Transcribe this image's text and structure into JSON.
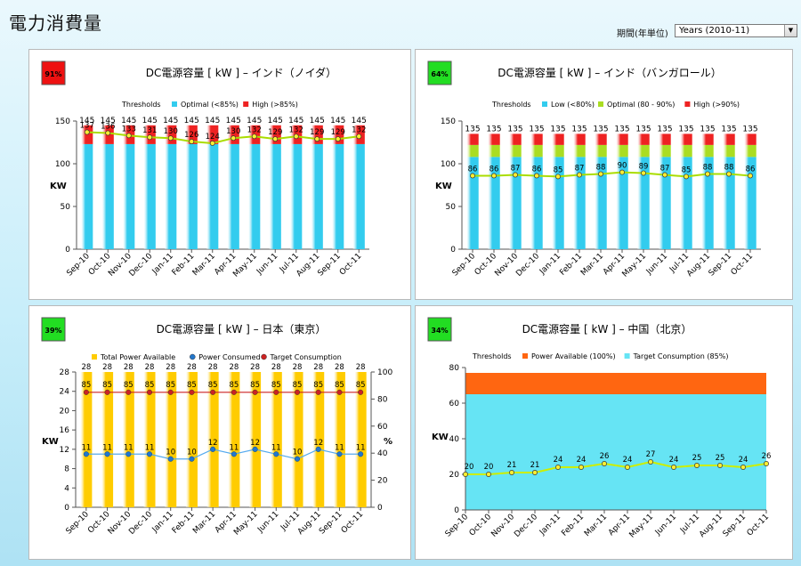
{
  "page": {
    "title": "電力消費量",
    "period_label": "期間(年単位)",
    "period_value": "Years (2010-11)"
  },
  "chart_data": [
    {
      "id": "noida",
      "type": "bar",
      "title": "DC電源容量 [ kW ] – インド（ノイダ）",
      "badge": "91%",
      "badge_color": "#ee1111",
      "ylabel": "KW",
      "ylim": [
        0,
        150
      ],
      "yticks": [
        0,
        50,
        100,
        150
      ],
      "legend_title": "Thresholds",
      "categories": [
        "Sep-10",
        "Oct-10",
        "Nov-10",
        "Dec-10",
        "Jan-11",
        "Feb-11",
        "Mar-11",
        "Apr-11",
        "May-11",
        "Jun-11",
        "Jul-11",
        "Aug-11",
        "Sep-11",
        "Oct-11"
      ],
      "series": [
        {
          "name": "Optimal (<85%)",
          "color": "#33ccee",
          "values": [
            123,
            123,
            123,
            123,
            123,
            123,
            123,
            123,
            123,
            123,
            123,
            123,
            123,
            123
          ]
        },
        {
          "name": "High (>85%)",
          "color": "#ee2222",
          "values": [
            22,
            22,
            22,
            22,
            22,
            22,
            22,
            22,
            22,
            22,
            22,
            22,
            22,
            22
          ]
        }
      ],
      "totals": [
        145,
        145,
        145,
        145,
        145,
        145,
        145,
        145,
        145,
        145,
        145,
        145,
        145,
        145
      ],
      "line": {
        "color": "#aadd00",
        "values": [
          137,
          136,
          133,
          131,
          130,
          126,
          124,
          130,
          132,
          129,
          132,
          129,
          129,
          132
        ]
      }
    },
    {
      "id": "bangalore",
      "type": "bar",
      "title": "DC電源容量 [ kW ] – インド（バンガロール）",
      "badge": "64%",
      "badge_color": "#22dd22",
      "ylabel": "KW",
      "ylim": [
        0,
        150
      ],
      "yticks": [
        0,
        50,
        100,
        150
      ],
      "legend_title": "Thresholds",
      "categories": [
        "Sep-10",
        "Oct-10",
        "Nov-10",
        "Dec-10",
        "Jan-11",
        "Feb-11",
        "Mar-11",
        "Apr-11",
        "May-11",
        "Jun-11",
        "Jul-11",
        "Aug-11",
        "Sep-11",
        "Oct-11"
      ],
      "series": [
        {
          "name": "Low (<80%)",
          "color": "#33ccee",
          "values": [
            108,
            108,
            108,
            108,
            108,
            108,
            108,
            108,
            108,
            108,
            108,
            108,
            108,
            108
          ]
        },
        {
          "name": "Optimal (80 - 90%)",
          "color": "#aadd22",
          "values": [
            14,
            14,
            14,
            14,
            14,
            14,
            14,
            14,
            14,
            14,
            14,
            14,
            14,
            14
          ]
        },
        {
          "name": "High (>90%)",
          "color": "#ee2222",
          "values": [
            13,
            13,
            13,
            13,
            13,
            13,
            13,
            13,
            13,
            13,
            13,
            13,
            13,
            13
          ]
        }
      ],
      "totals": [
        135,
        135,
        135,
        135,
        135,
        135,
        135,
        135,
        135,
        135,
        135,
        135,
        135,
        135
      ],
      "line": {
        "color": "#aadd00",
        "values": [
          86,
          86,
          87,
          86,
          85,
          87,
          88,
          90,
          89,
          87,
          85,
          88,
          88,
          86
        ]
      }
    },
    {
      "id": "tokyo",
      "type": "bar",
      "title": "DC電源容量 [ kW ] – 日本（東京）",
      "badge": "39%",
      "badge_color": "#22dd22",
      "ylabel": "KW",
      "y2label": "%",
      "ylim": [
        0,
        28
      ],
      "yticks": [
        0,
        4,
        8,
        12,
        16,
        20,
        24,
        28
      ],
      "y2lim": [
        0,
        100
      ],
      "y2ticks": [
        0,
        20,
        40,
        60,
        80,
        100
      ],
      "categories": [
        "Sep-10",
        "Oct-10",
        "Nov-10",
        "Dec-10",
        "Jan-11",
        "Feb-11",
        "Mar-11",
        "Apr-11",
        "May-11",
        "Jun-11",
        "Jul-11",
        "Aug-11",
        "Sep-11",
        "Oct-11"
      ],
      "series": [
        {
          "name": "Total Power Available",
          "color": "#ffcc00",
          "values": [
            28,
            28,
            28,
            28,
            28,
            28,
            28,
            28,
            28,
            28,
            28,
            28,
            28,
            28
          ]
        },
        {
          "name": "Power Consumed",
          "color": "#2277cc",
          "values": [
            11,
            11,
            11,
            11,
            10,
            10,
            12,
            11,
            12,
            11,
            10,
            12,
            11,
            11
          ]
        },
        {
          "name": "Target Consumption",
          "color": "#cc2222",
          "values": [
            85,
            85,
            85,
            85,
            85,
            85,
            85,
            85,
            85,
            85,
            85,
            85,
            85,
            85
          ]
        }
      ]
    },
    {
      "id": "beijing",
      "type": "area",
      "title": "DC電源容量 [ kW ] – 中国（北京）",
      "badge": "34%",
      "badge_color": "#22dd22",
      "ylabel": "KW",
      "ylim": [
        0,
        80
      ],
      "yticks": [
        0,
        20,
        40,
        60,
        80
      ],
      "legend_title": "Thresholds",
      "categories": [
        "Sep-10",
        "Oct-10",
        "Nov-10",
        "Dec-10",
        "Jan-11",
        "Feb-11",
        "Mar-11",
        "Apr-11",
        "May-11",
        "Jun-11",
        "Jul-11",
        "Aug-11",
        "Sep-11",
        "Oct-11"
      ],
      "series": [
        {
          "name": "Power Available (100%)",
          "color": "#ff6611",
          "value": 77
        },
        {
          "name": "Target Consumption (85%)",
          "color": "#66e4f4",
          "value": 65
        }
      ],
      "line": {
        "color": "#ccee00",
        "values": [
          20,
          20,
          21,
          21,
          24,
          24,
          26,
          24,
          27,
          24,
          25,
          25,
          24,
          26
        ]
      }
    }
  ]
}
